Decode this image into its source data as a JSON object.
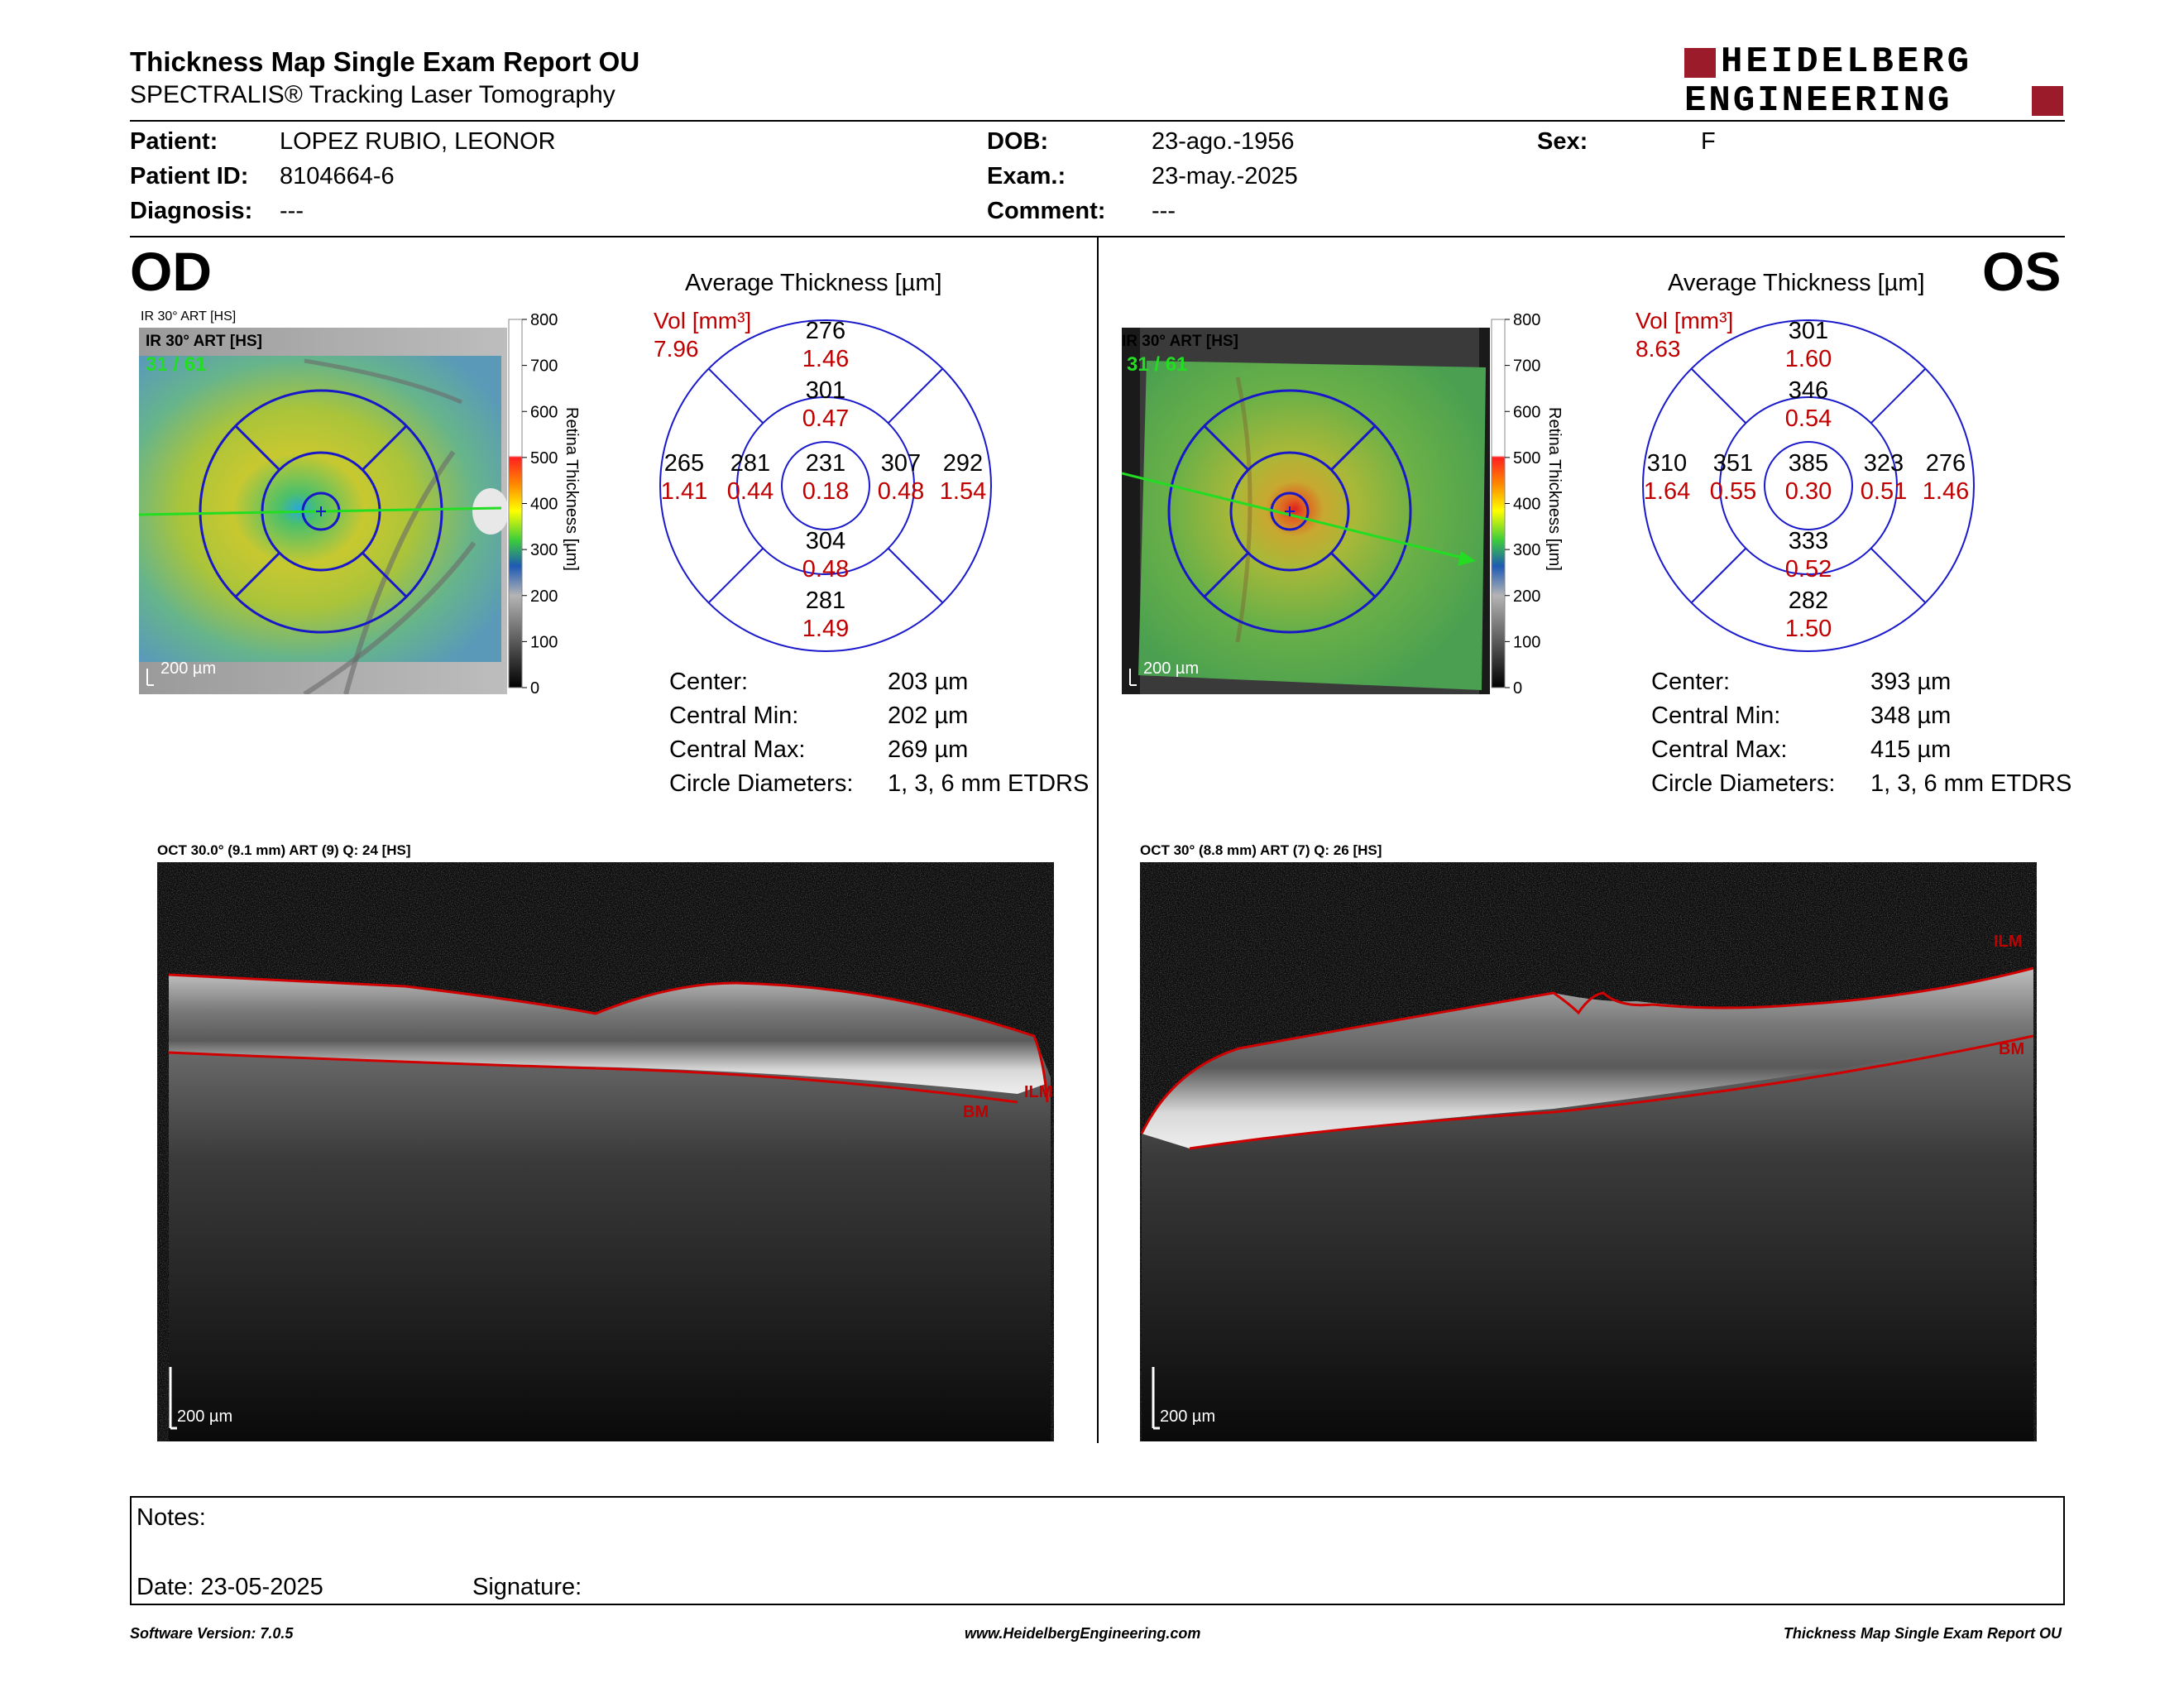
{
  "header": {
    "title": "Thickness Map Single Exam Report OU",
    "subtitle": "SPECTRALIS® Tracking Laser Tomography",
    "logo_line1": "HEIDELBERG",
    "logo_line2": "ENGINEERING"
  },
  "patient": {
    "patient_label": "Patient:",
    "patient_value": "LOPEZ RUBIO, LEONOR",
    "id_label": "Patient ID:",
    "id_value": "8104664-6",
    "diagnosis_label": "Diagnosis:",
    "diagnosis_value": "---",
    "dob_label": "DOB:",
    "dob_value": "23-ago.-1956",
    "exam_label": "Exam.:",
    "exam_value": "23-may.-2025",
    "comment_label": "Comment:",
    "comment_value": "---",
    "sex_label": "Sex:",
    "sex_value": "F"
  },
  "scale": {
    "ticks": [
      "800",
      "700",
      "600",
      "500",
      "400",
      "300",
      "200",
      "100",
      "0"
    ],
    "title": "Retina Thickness [µm]"
  },
  "od": {
    "eye": "OD",
    "ir_label": "IR 30° ART [HS]",
    "frame": "31 / 61",
    "scalebar": "200 µm",
    "avg_title": "Average Thickness [µm]",
    "vol_label": "Vol [mm³]",
    "vol_total": "7.96",
    "grid": {
      "center": {
        "t": "231",
        "v": "0.18"
      },
      "inner_top": {
        "t": "301",
        "v": "0.47"
      },
      "inner_bottom": {
        "t": "304",
        "v": "0.48"
      },
      "inner_left": {
        "t": "281",
        "v": "0.44"
      },
      "inner_right": {
        "t": "307",
        "v": "0.48"
      },
      "outer_top": {
        "t": "276",
        "v": "1.46"
      },
      "outer_bottom": {
        "t": "281",
        "v": "1.49"
      },
      "outer_left": {
        "t": "265",
        "v": "1.41"
      },
      "outer_right": {
        "t": "292",
        "v": "1.54"
      }
    },
    "stats": [
      {
        "label": "Center:",
        "value": "203 µm"
      },
      {
        "label": "Central Min:",
        "value": "202 µm"
      },
      {
        "label": "Central Max:",
        "value": "269 µm"
      },
      {
        "label": "Circle Diameters:",
        "value": "1, 3, 6 mm ETDRS"
      }
    ],
    "oct_label": "OCT 30.0° (9.1 mm) ART (9) Q: 24 [HS]",
    "ilm": "ILM",
    "bm": "BM",
    "oct_scalebar": "200 µm"
  },
  "os": {
    "eye": "OS",
    "ir_label": "IR 30° ART [HS]",
    "frame": "31 / 61",
    "scalebar": "200 µm",
    "avg_title": "Average Thickness [µm]",
    "vol_label": "Vol [mm³]",
    "vol_total": "8.63",
    "grid": {
      "center": {
        "t": "385",
        "v": "0.30"
      },
      "inner_top": {
        "t": "346",
        "v": "0.54"
      },
      "inner_bottom": {
        "t": "333",
        "v": "0.52"
      },
      "inner_left": {
        "t": "351",
        "v": "0.55"
      },
      "inner_right": {
        "t": "323",
        "v": "0.51"
      },
      "outer_top": {
        "t": "301",
        "v": "1.60"
      },
      "outer_bottom": {
        "t": "282",
        "v": "1.50"
      },
      "outer_left": {
        "t": "310",
        "v": "1.64"
      },
      "outer_right": {
        "t": "276",
        "v": "1.46"
      }
    },
    "stats": [
      {
        "label": "Center:",
        "value": "393 µm"
      },
      {
        "label": "Central Min:",
        "value": "348 µm"
      },
      {
        "label": "Central Max:",
        "value": "415 µm"
      },
      {
        "label": "Circle Diameters:",
        "value": "1, 3, 6 mm ETDRS"
      }
    ],
    "oct_label": "OCT 30° (8.8 mm) ART (7) Q: 26 [HS]",
    "ilm": "ILM",
    "bm": "BM",
    "oct_scalebar": "200 µm"
  },
  "notes": {
    "notes_label": "Notes:",
    "date_label": "Date: 23-05-2025",
    "signature_label": "Signature:"
  },
  "footer": {
    "left": "Software Version: 7.0.5",
    "center": "www.HeidelbergEngineering.com",
    "right": "Thickness Map Single Exam Report OU"
  },
  "colors": {
    "logo_red": "#9b1b2a",
    "grid_blue": "#1a1acc",
    "value_red": "#d00000",
    "scan_green": "#22dd22"
  }
}
